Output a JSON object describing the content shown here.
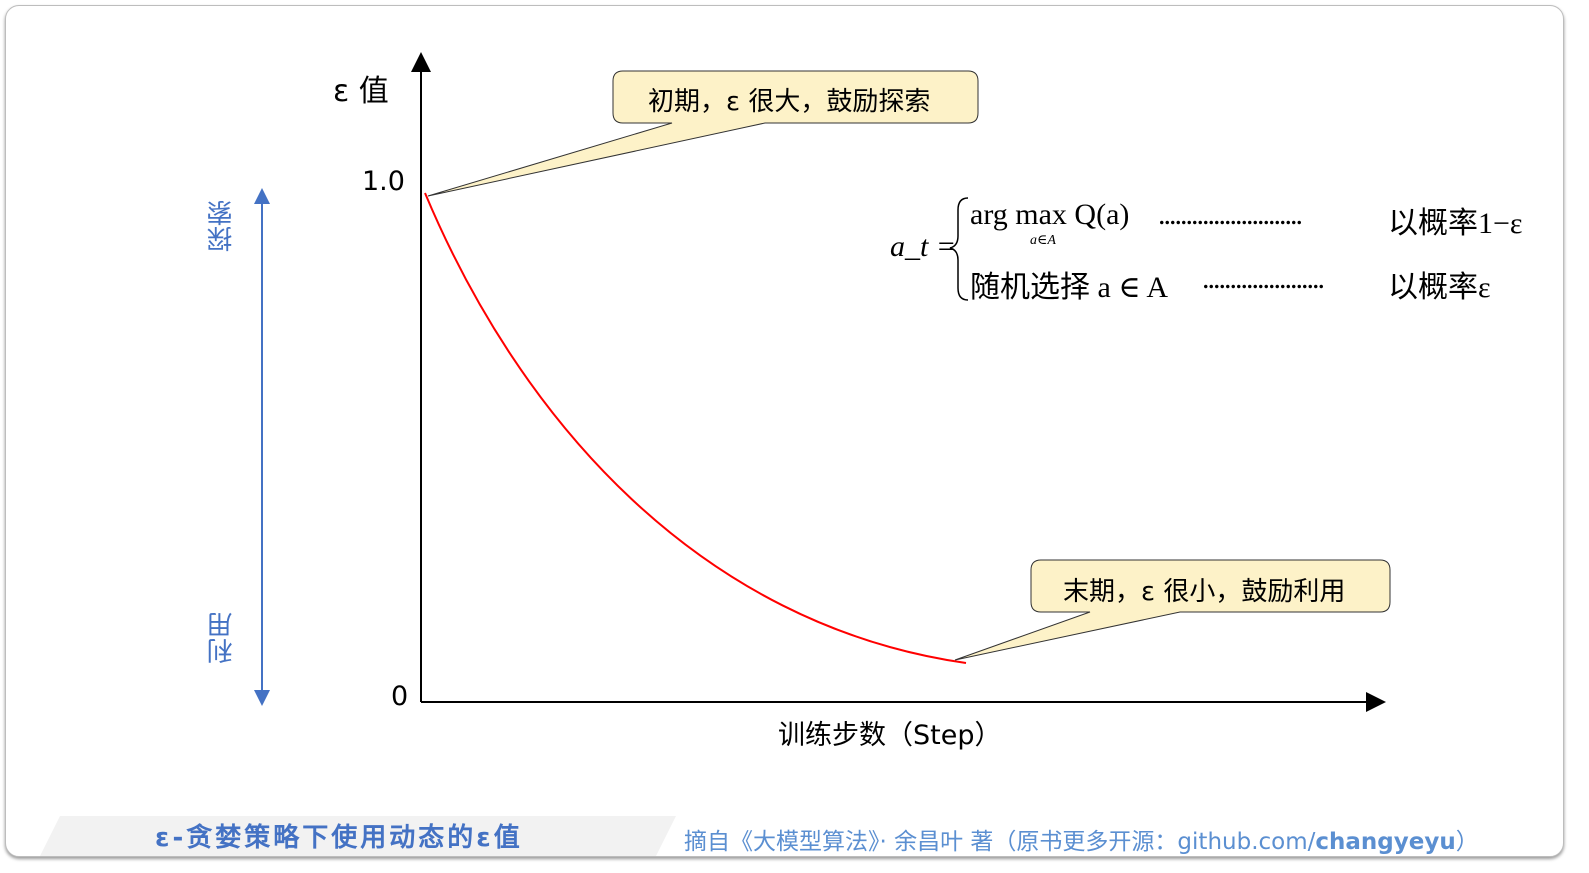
{
  "y_axis_label": "ε 值",
  "x_axis_label": "训练步数（Step）",
  "y_ticks": [
    "1.0",
    "0"
  ],
  "side_labels": {
    "top": "探索",
    "bottom": "利用"
  },
  "callouts": {
    "start": "初期，ε 很大，鼓励探索",
    "end": "末期，ε 很小，鼓励利用"
  },
  "formula": {
    "lhs": "a_t =",
    "row1_expr": "arg max Q(a)",
    "row1_sub": "a∈A",
    "row1_dots": "..........................",
    "row1_prob": "以概率1−ε",
    "row2_expr": "随机选择 a ∈ A",
    "row2_dots": "......................",
    "row2_prob": "以概率ε"
  },
  "caption": "ε-贪婪策略下使用动态的ε值",
  "source": {
    "prefix": "摘自《大模型算法》· 余昌叶 著（原书更多开源：github.com/",
    "bold": "changyeyu",
    "suffix": "）"
  },
  "colors": {
    "curve": "#ff0000",
    "accent": "#4472c4",
    "callout_fill": "#fdf2c8"
  }
}
